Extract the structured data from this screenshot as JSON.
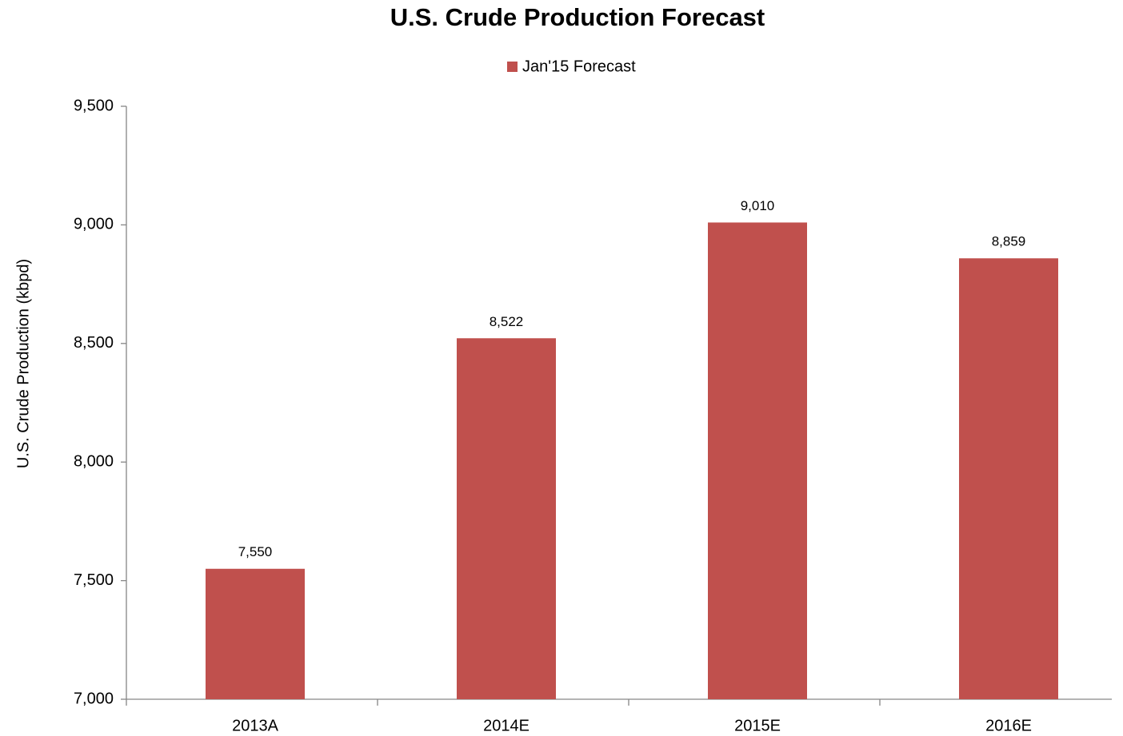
{
  "chart_data": {
    "type": "bar",
    "title": "U.S. Crude Production Forecast",
    "y_label": "U.S. Crude Production  (kbpd)",
    "categories": [
      "2013A",
      "2014E",
      "2015E",
      "2016E"
    ],
    "series": [
      {
        "name": "Jan'15 Forecast",
        "color": "#c0504d",
        "values": [
          7550,
          8522,
          9010,
          8859
        ],
        "value_labels": [
          "7,550",
          "8,522",
          "9,010",
          "8,859"
        ]
      }
    ],
    "ylim": [
      7000,
      9500
    ],
    "yticks": [
      {
        "value": 7000,
        "label": "7,000"
      },
      {
        "value": 7500,
        "label": "7,500"
      },
      {
        "value": 8000,
        "label": "8,000"
      },
      {
        "value": 8500,
        "label": "8,500"
      },
      {
        "value": 9000,
        "label": "9,000"
      },
      {
        "value": 9500,
        "label": "9,500"
      }
    ],
    "grid": false,
    "legend": "top"
  }
}
